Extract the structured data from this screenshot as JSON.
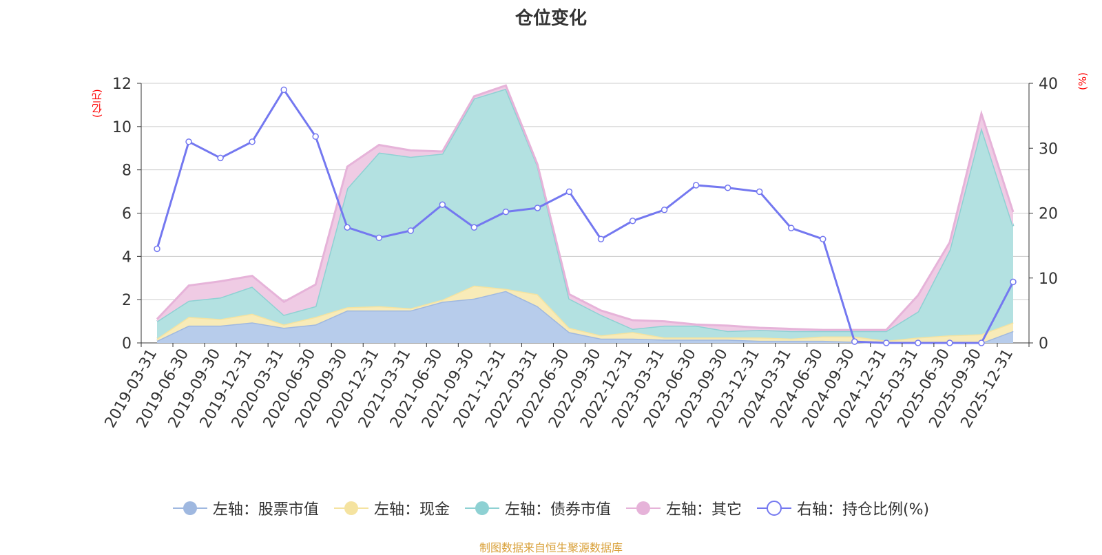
{
  "chart_data": {
    "type": "area",
    "title": "仓位变化",
    "left_axis_unit": "(亿元)",
    "right_axis_unit": "(%)",
    "left_ylim": [
      0,
      12
    ],
    "left_ticks": [
      "0",
      "2",
      "4",
      "6",
      "8",
      "10",
      "12"
    ],
    "right_ylim": [
      0,
      40
    ],
    "right_ticks": [
      "0",
      "10",
      "20",
      "30",
      "40"
    ],
    "categories": [
      "2019-03-31",
      "2019-06-30",
      "2019-09-30",
      "2019-12-31",
      "2020-03-31",
      "2020-06-30",
      "2020-09-30",
      "2020-12-31",
      "2021-03-31",
      "2021-06-30",
      "2021-09-30",
      "2021-12-31",
      "2022-03-31",
      "2022-06-30",
      "2022-09-30",
      "2022-12-31",
      "2023-03-31",
      "2023-06-30",
      "2023-09-30",
      "2023-12-31",
      "2024-03-31",
      "2024-06-30",
      "2024-09-30",
      "2024-12-31",
      "2025-03-31",
      "2025-06-30",
      "2025-09-30",
      "2025-12-31"
    ],
    "series": [
      {
        "name": "左轴：股票市值",
        "axis": "left",
        "stack": true,
        "color": "#9fb8e0",
        "fill": "#b7cceb",
        "values": [
          0.1,
          0.8,
          0.8,
          0.95,
          0.7,
          0.85,
          1.5,
          1.5,
          1.5,
          1.9,
          2.05,
          2.4,
          1.7,
          0.5,
          0.2,
          0.2,
          0.15,
          0.15,
          0.15,
          0.1,
          0.1,
          0.1,
          0.05,
          0.0,
          0.0,
          0.0,
          0.0,
          0.55
        ]
      },
      {
        "name": "左轴：现金",
        "axis": "left",
        "stack": true,
        "color": "#f5e3a0",
        "fill": "#f8ebb8",
        "values": [
          0.1,
          0.4,
          0.3,
          0.4,
          0.15,
          0.35,
          0.15,
          0.2,
          0.1,
          0.1,
          0.6,
          0.1,
          0.55,
          0.2,
          0.15,
          0.3,
          0.1,
          0.1,
          0.1,
          0.15,
          0.1,
          0.2,
          0.25,
          0.1,
          0.25,
          0.35,
          0.4,
          0.4
        ]
      },
      {
        "name": "左轴：债券市值",
        "axis": "left",
        "stack": true,
        "color": "#8ed1d3",
        "fill": "#b3e1e1",
        "values": [
          0.8,
          0.75,
          1.0,
          1.25,
          0.45,
          0.5,
          5.5,
          7.1,
          7.0,
          6.75,
          8.65,
          9.25,
          5.95,
          1.35,
          0.95,
          0.15,
          0.55,
          0.55,
          0.3,
          0.35,
          0.35,
          0.25,
          0.25,
          0.45,
          1.2,
          3.95,
          9.55,
          4.45
        ]
      },
      {
        "name": "左轴：其它",
        "axis": "left",
        "stack": true,
        "color": "#e6b3d9",
        "fill": "#efcbe4",
        "values": [
          0.1,
          0.7,
          0.75,
          0.5,
          0.6,
          1.0,
          1.0,
          0.35,
          0.3,
          0.1,
          0.1,
          0.15,
          0.05,
          0.2,
          0.2,
          0.4,
          0.2,
          0.05,
          0.25,
          0.1,
          0.1,
          0.05,
          0.05,
          0.05,
          0.75,
          0.35,
          0.65,
          0.65
        ]
      },
      {
        "name": "右轴：持仓比例(%)",
        "axis": "right",
        "type": "line",
        "color": "#7478f0",
        "values": [
          14.5,
          31,
          28.5,
          31,
          39,
          31.8,
          17.8,
          16.2,
          17.3,
          21.3,
          17.8,
          20.2,
          20.8,
          23.3,
          16,
          18.8,
          20.5,
          24.3,
          23.9,
          23.3,
          17.7,
          16,
          0.2,
          0,
          0,
          0,
          0,
          9.4
        ]
      }
    ]
  },
  "source": "制图数据来自恒生聚源数据库"
}
